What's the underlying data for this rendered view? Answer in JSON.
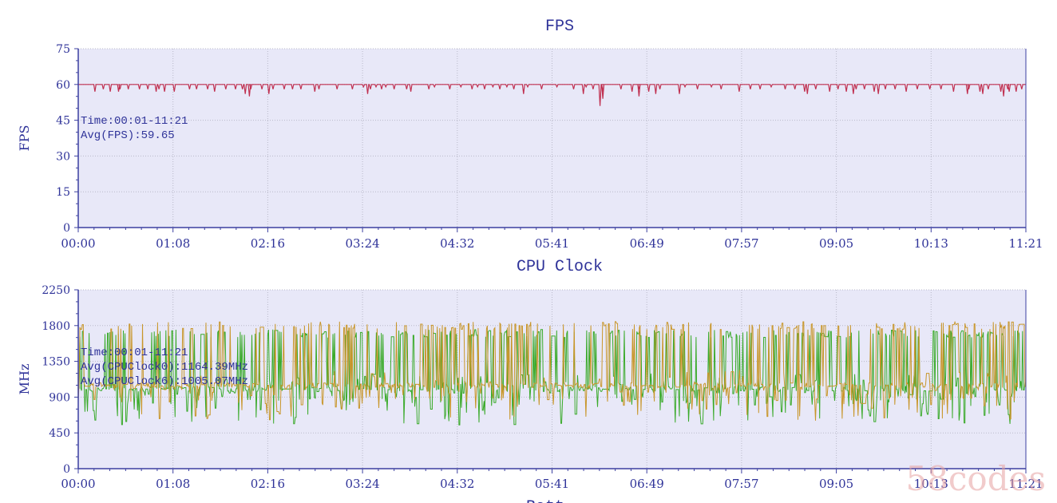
{
  "watermark": "58codes",
  "next_chart_title_fragment": "Batt",
  "colors": {
    "plot_bg": "#e8e8f8",
    "axis": "#3b3fa0",
    "label": "#2f3399",
    "grid": "#b9b9c9",
    "fps_line": "#c03050",
    "cpu0_line": "#3aaa2a",
    "cpu6_line": "#c8962a",
    "watermark": "#e6a0a0"
  },
  "chart_data": [
    {
      "type": "line",
      "title": "FPS",
      "ylabel": "FPS",
      "xlabel": "",
      "ylim": [
        0,
        75
      ],
      "yticks": [
        0,
        15,
        30,
        45,
        60,
        75
      ],
      "xlim_seconds": [
        0,
        681
      ],
      "xticks": [
        "00:00",
        "01:08",
        "02:16",
        "03:24",
        "04:32",
        "05:41",
        "06:49",
        "07:57",
        "09:05",
        "10:13",
        "11:21"
      ],
      "grid": true,
      "annotations": [
        "Time:00:01-11:21",
        "Avg(FPS):59.65"
      ],
      "series": [
        {
          "color": "#c03050",
          "baseline": 60,
          "dips": [
            [
              12,
              57
            ],
            [
              18,
              58
            ],
            [
              23,
              57
            ],
            [
              30,
              58
            ],
            [
              36,
              58
            ],
            [
              44,
              58
            ],
            [
              50,
              58
            ],
            [
              58,
              58
            ],
            [
              62,
              57
            ],
            [
              69,
              57
            ],
            [
              80,
              58
            ],
            [
              85,
              58
            ],
            [
              93,
              58
            ],
            [
              98,
              57
            ],
            [
              106,
              58
            ],
            [
              113,
              58
            ],
            [
              118,
              58
            ],
            [
              124,
              58
            ],
            [
              132,
              58
            ],
            [
              140,
              58
            ],
            [
              148,
              58
            ],
            [
              154,
              58
            ],
            [
              160,
              58
            ],
            [
              170,
              57
            ],
            [
              173,
              58
            ],
            [
              186,
              58
            ],
            [
              197,
              58
            ],
            [
              205,
              59
            ],
            [
              210,
              58
            ],
            [
              214,
              59
            ],
            [
              218,
              58
            ],
            [
              221,
              59
            ],
            [
              227,
              58
            ],
            [
              236,
              58
            ],
            [
              239,
              57
            ],
            [
              252,
              58
            ],
            [
              256,
              59
            ],
            [
              267,
              58
            ],
            [
              275,
              59
            ],
            [
              283,
              58
            ],
            [
              287,
              59
            ],
            [
              292,
              58
            ],
            [
              298,
              59
            ],
            [
              303,
              58
            ],
            [
              308,
              59
            ],
            [
              313,
              58
            ],
            [
              323,
              59
            ],
            [
              333,
              58
            ],
            [
              344,
              59
            ],
            [
              356,
              58
            ],
            [
              365,
              59
            ],
            [
              370,
              58
            ],
            [
              377,
              57
            ],
            [
              390,
              58
            ],
            [
              398,
              57
            ],
            [
              403,
              58
            ],
            [
              410,
              57
            ],
            [
              418,
              58
            ],
            [
              436,
              59
            ],
            [
              445,
              58
            ],
            [
              455,
              59
            ],
            [
              462,
              58
            ],
            [
              475,
              57
            ],
            [
              483,
              58
            ],
            [
              490,
              58
            ],
            [
              498,
              59
            ],
            [
              508,
              58
            ],
            [
              515,
              58
            ],
            [
              522,
              57
            ],
            [
              530,
              58
            ],
            [
              540,
              57
            ],
            [
              546,
              58
            ],
            [
              552,
              57
            ],
            [
              559,
              58
            ],
            [
              565,
              58
            ],
            [
              572,
              57
            ],
            [
              580,
              58
            ],
            [
              587,
              58
            ],
            [
              595,
              57
            ],
            [
              603,
              58
            ],
            [
              612,
              58
            ],
            [
              620,
              58
            ],
            [
              629,
              57
            ],
            [
              640,
              58
            ],
            [
              648,
              57
            ],
            [
              654,
              58
            ],
            [
              663,
              57
            ],
            [
              668,
              58
            ],
            [
              674,
              57
            ],
            [
              678,
              58
            ]
          ],
          "deep_dips": [
            [
              29,
              57
            ],
            [
              56,
              57
            ],
            [
              120,
              56
            ],
            [
              123,
              55
            ],
            [
              137,
              56
            ],
            [
              208,
              56
            ],
            [
              320,
              56
            ],
            [
              363,
              56
            ],
            [
              377,
              54
            ],
            [
              375,
              51
            ],
            [
              403,
              55
            ],
            [
              415,
              56
            ],
            [
              432,
              56
            ],
            [
              524,
              56
            ],
            [
              557,
              56
            ],
            [
              575,
              56
            ],
            [
              639,
              56
            ],
            [
              650,
              56
            ],
            [
              665,
              55
            ],
            [
              669,
              57
            ]
          ]
        }
      ]
    },
    {
      "type": "line",
      "title": "CPU Clock",
      "ylabel": "MHz",
      "xlabel": "",
      "ylim": [
        0,
        2250
      ],
      "yticks": [
        0,
        450,
        900,
        1350,
        1800,
        2250
      ],
      "xlim_seconds": [
        0,
        681
      ],
      "xticks": [
        "00:00",
        "01:08",
        "02:16",
        "03:24",
        "04:32",
        "05:41",
        "06:49",
        "07:57",
        "09:05",
        "10:13",
        "11:21"
      ],
      "grid": true,
      "annotations": [
        "Time:00:01-11:21",
        "Avg(CPUClock0):1164.39MHz",
        "Avg(CPUClock6):1005.07MHz"
      ],
      "series": [
        {
          "color": "#3aaa2a",
          "plateau": 1750,
          "base": 1000,
          "low": 550,
          "segments": [
            [
              0,
              60,
              0.55
            ],
            [
              60,
              130,
              0.6
            ],
            [
              130,
              200,
              0.75
            ],
            [
              200,
              260,
              0.65
            ],
            [
              260,
              330,
              0.85
            ],
            [
              330,
              380,
              0.5
            ],
            [
              380,
              450,
              0.7
            ],
            [
              450,
              520,
              0.75
            ],
            [
              520,
              600,
              0.85
            ],
            [
              600,
              681,
              0.8
            ]
          ]
        },
        {
          "color": "#c8962a",
          "plateau": 1850,
          "base": 1050,
          "low": 600,
          "segments": [
            [
              0,
              60,
              0.35
            ],
            [
              60,
              130,
              0.4
            ],
            [
              130,
              200,
              0.5
            ],
            [
              200,
              260,
              0.4
            ],
            [
              260,
              330,
              0.5
            ],
            [
              330,
              380,
              0.3
            ],
            [
              380,
              450,
              0.5
            ],
            [
              450,
              520,
              0.55
            ],
            [
              520,
              600,
              0.6
            ],
            [
              600,
              681,
              0.5
            ]
          ]
        }
      ]
    }
  ]
}
